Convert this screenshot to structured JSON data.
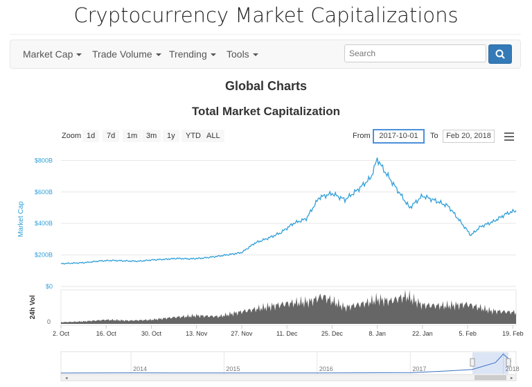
{
  "site_title": "Cryptocurrency Market Capitalizations",
  "nav": {
    "items": [
      "Market Cap",
      "Trade Volume",
      "Trending",
      "Tools"
    ],
    "search_placeholder": "Search"
  },
  "headings": {
    "section": "Global Charts",
    "chart": "Total Market Capitalization"
  },
  "toolbar": {
    "zoom_label": "Zoom",
    "zoom_buttons": [
      "1d",
      "7d",
      "1m",
      "3m",
      "1y",
      "YTD",
      "ALL"
    ],
    "from_label": "From",
    "from_value": "2017-10-01",
    "to_label": "To",
    "to_value": "Feb 20, 2018",
    "menu_icon": "hamburger-menu-icon"
  },
  "colors": {
    "market_cap_line": "#2f9fd8",
    "volume_area": "#666666",
    "navigator_line": "#3a6fbe",
    "nav_button": "#337ab7"
  },
  "chart_data": {
    "type": "line",
    "title": "Total Market Capitalization",
    "ylabel": "Market Cap",
    "y_ticks": [
      "$0",
      "$200B",
      "$400B",
      "$600B",
      "$800B"
    ],
    "ylim": [
      0,
      850
    ],
    "y_unit": "billion USD",
    "x_ticks": [
      "2. Oct",
      "16. Oct",
      "30. Oct",
      "13. Nov",
      "27. Nov",
      "11. Dec",
      "25. Dec",
      "8. Jan",
      "22. Jan",
      "5. Feb",
      "19. Feb"
    ],
    "market_cap": {
      "x": [
        "2017-10-02",
        "2017-10-06",
        "2017-10-10",
        "2017-10-14",
        "2017-10-18",
        "2017-10-22",
        "2017-10-26",
        "2017-10-30",
        "2017-11-03",
        "2017-11-07",
        "2017-11-11",
        "2017-11-15",
        "2017-11-19",
        "2017-11-23",
        "2017-11-27",
        "2017-12-01",
        "2017-12-05",
        "2017-12-09",
        "2017-12-13",
        "2017-12-17",
        "2017-12-21",
        "2017-12-25",
        "2017-12-29",
        "2018-01-02",
        "2018-01-06",
        "2018-01-08",
        "2018-01-10",
        "2018-01-14",
        "2018-01-18",
        "2018-01-22",
        "2018-01-26",
        "2018-01-30",
        "2018-02-03",
        "2018-02-06",
        "2018-02-09",
        "2018-02-13",
        "2018-02-17",
        "2018-02-20"
      ],
      "y": [
        145,
        148,
        152,
        162,
        165,
        162,
        160,
        168,
        172,
        178,
        175,
        180,
        190,
        202,
        215,
        275,
        305,
        340,
        400,
        430,
        565,
        590,
        550,
        615,
        690,
        810,
        740,
        620,
        500,
        575,
        545,
        510,
        405,
        325,
        380,
        412,
        462,
        482
      ]
    },
    "volume": {
      "label": "24h Vol",
      "y_tick": "0",
      "ylim": [
        0,
        40
      ],
      "unit": "billion USD",
      "x": [
        "2017-10-02",
        "2017-10-09",
        "2017-10-16",
        "2017-10-23",
        "2017-10-30",
        "2017-11-06",
        "2017-11-13",
        "2017-11-20",
        "2017-11-27",
        "2017-12-04",
        "2017-12-11",
        "2017-12-18",
        "2017-12-22",
        "2017-12-29",
        "2018-01-05",
        "2018-01-08",
        "2018-01-12",
        "2018-01-17",
        "2018-01-22",
        "2018-01-29",
        "2018-02-05",
        "2018-02-12",
        "2018-02-20"
      ],
      "y": [
        2,
        3,
        5,
        4,
        5,
        8,
        10,
        9,
        15,
        20,
        25,
        27,
        34,
        20,
        26,
        30,
        28,
        34,
        23,
        22,
        24,
        16,
        14
      ]
    },
    "navigator": {
      "x_ticks": [
        "2014",
        "2015",
        "2016",
        "2017",
        "2018"
      ],
      "x": [
        "2013-04",
        "2014-01",
        "2015-01",
        "2016-01",
        "2017-01",
        "2017-06",
        "2017-09",
        "2017-12",
        "2018-01",
        "2018-02"
      ],
      "y": [
        2,
        10,
        5,
        7,
        18,
        90,
        150,
        430,
        780,
        480
      ]
    }
  }
}
